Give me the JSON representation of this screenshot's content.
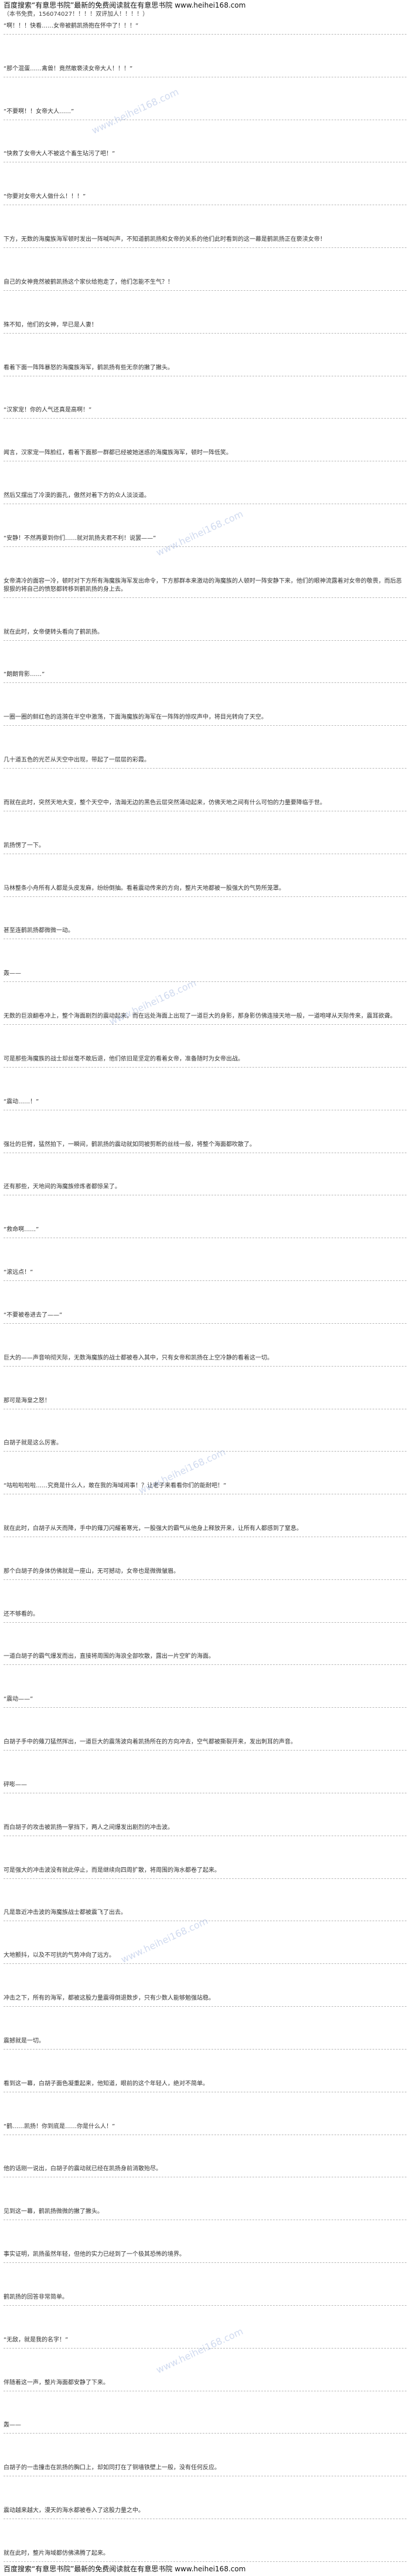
{
  "header": {
    "title": "百度搜索“有意思书院”最新的免费阅读就在有意思书院 www.heihei168.com",
    "note": "（本书免费，156074027！！！！双评加人！！！！）"
  },
  "watermark": "www.heihei168.com",
  "paragraphs": [
    "“啊！！！快看……女帝被鹤凯扬抱在怀中了！！！”",
    "“那个混蛋……禽兽！竟然敢亵渎女帝大人！！！”",
    "“不要啊！！女帝大人……”",
    "“快救了女帝大人不被这个畜生玷污了吧！”",
    "“你要对女帝大人做什么！！！”",
    "下方，无数的海魔族海军顿时发出一阵喊叫声，不知道鹤凯扬和女帝的关系的他们此时看到的这一幕是鹤凯扬正在亵渎女帝！",
    "自己的女神竟然被鹤凯扬这个家伙给抱走了，他们怎能不生气？！",
    "殊不知，他们的女神，早已是人妻！",
    "看着下面一阵阵暴怒的海魔族海军，鹤凯扬有些无奈的撇了撇头。",
    "“汉家宠！你的人气还真是高啊！”",
    "闻言，汉家宠一阵脸红，看着下面那一群都已经被她迷惑的海魔族海军，顿时一阵低笑。",
    "然后又摆出了冷漠的面孔，傲然对着下方的众人淡淡道。",
    "“安静！不然再要到你们……就对凯扬夫君不利！说罢——”",
    "女帝清冷的面容一冷，顿时对下方所有海魔族海军发出命令，下方那群本来激动的海魔族的人顿时一阵安静下来，他们的眼神流露着对女帝的敬畏，而后恶狠狠的将自己的愤怒都转移到鹤凯扬的身上去。",
    "就在此时，女帝便转头看向了鹤凯扬。",
    "“朗朗背影……”",
    "一圈一圈的鲜红色的涟漪在半空中激荡，下面海魔族的海军在一阵阵的惊叹声中，将目光转向了天空。",
    "几十道五色的光芒从天空中出现，带起了一层层的彩霞。",
    "而就在此时，突然天地大变，整个天空中，浩瀚无边的黑色云层突然涌动起来，仿佛天地之间有什么可怕的力量要降临于世。",
    "凯扬愣了一下。",
    "马林整条小舟所有人都是头皮发麻，纷纷倒抽。看着震动传来的方向，整片天地都被一股强大的气势所笼罩。",
    "甚至连鹤凯扬都微微一动。",
    "轰——",
    "无数的巨浪翻卷冲上，整个海面剧烈的震动起来，而在远处海面上出现了一道巨大的身影，那身影仿佛连接天地一般，一道咆哮从天际传来，震耳欲聋。",
    "可是那些海魔族的战士却丝毫不敢后退，他们依旧是坚定的看着女帝，准备随时为女帝出战。",
    "“震动……！”",
    "强壮的巨臂，猛然拍下，一瞬间，鹤凯扬的震动就如同被剪断的丝线一般，将整个海面都吹散了。",
    "还有那些，天地间的海魔族修炼者都惊呆了。",
    "“救命啊……”",
    "“滚远点！”",
    "“不要被卷进去了——”",
    "巨大的——声音响彻天际，无数海魔族的战士都被卷入其中，只有女帝和凯扬在上空冷静的看着这一切。",
    "那可是海皇之怒！",
    "白胡子就是这么厉害。",
    "“咕啦啦啦啦……究竟是什么人，敢在我的海域闹事！？让老子来看看你们的能耐吧！”",
    "就在此时，白胡子从天而降，手中的薙刀闪耀着寒光，一股强大的霸气从他身上释放开来，让所有人都感到了窒息。",
    "那个白胡子的身体仿佛就是一座山，无可撼动，女帝也是微微皱眉。",
    "还不够看的。",
    "一道白胡子的霸气爆发而出，直接将周围的海浪全部吹散，露出一片空旷的海面。",
    "“震动——”",
    "白胡子手中的薙刀猛然挥出，一道巨大的震荡波向着凯扬所在的方向冲去，空气都被撕裂开来，发出刺耳的声音。",
    "砰嘭——",
    "而白胡子的攻击被凯扬一掌挡下，两人之间爆发出剧烈的冲击波。",
    "可是强大的冲击波没有就此停止，而是继续向四周扩散，将周围的海水都卷了起来。",
    "凡是靠近冲击波的海魔族战士都被震飞了出去。",
    "大地颤抖，以及不可抗的气势冲向了远方。",
    "冲击之下，所有的海军，都被这股力量震得倒退数步，只有少数人能够勉强站稳。",
    "震撼就是一切。",
    "看到这一幕，白胡子面色凝重起来，他知道，眼前的这个年轻人，绝对不简单。",
    "“鹤……凯扬！你到底是……你是什么人！”",
    "他的话刚一说出，白胡子的震动就已经在凯扬身前消散殆尽。",
    "见到这一幕，鹤凯扬微微的撇了撇头。",
    "事实证明，凯扬虽然年轻，但他的实力已经到了一个极其恐怖的境界。",
    "鹤凯扬的回答非常简单。",
    "“无敌，就是我的名字！”",
    "伴随着这一声，整片海面都安静了下来。",
    "轰——",
    "白胡子的一击撞击在凯扬的胸口上，却如同打在了铜墙铁壁上一般，没有任何反应。",
    "震动越来越大，漫天的海水都被卷入了这股力量之中。",
    "就在此时，整片海域都仿佛沸腾了起来。"
  ],
  "footer": "百度搜索“有意思书院”最新的免费阅读就在有意思书院 www.heihei168.com"
}
